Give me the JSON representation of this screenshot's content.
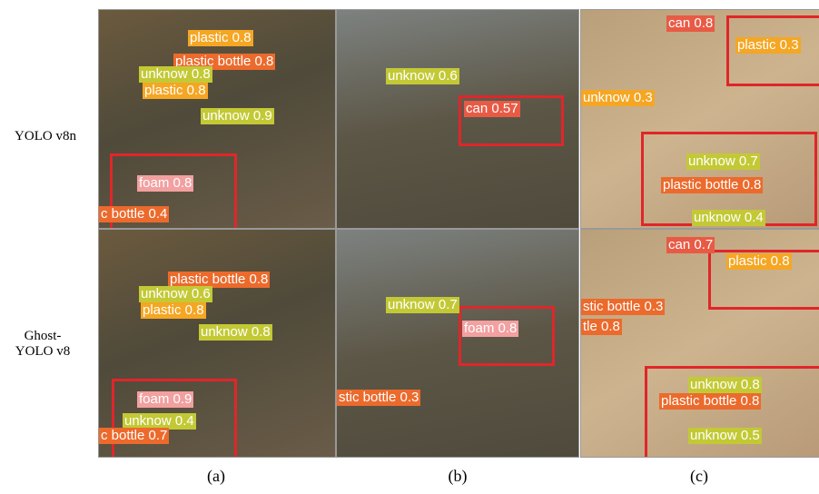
{
  "rows": [
    {
      "label": "YOLO v8n",
      "panels": [
        {
          "detections": [
            "plastic 0.8",
            "plastic bottle 0.8",
            "unknow 0.8",
            "plastic 0.8",
            "unknow 0.9",
            "foam 0.8",
            "c bottle 0.4"
          ]
        },
        {
          "detections": [
            "unknow 0.6",
            "can 0.57"
          ]
        },
        {
          "detections": [
            "plastic 0.3",
            "unknow 0.3",
            "unknow 0.7",
            "plastic bottle 0.8",
            "unknow 0.4",
            "can 0.8"
          ]
        }
      ]
    },
    {
      "label": "Ghost-YOLO v8",
      "panels": [
        {
          "detections": [
            "plastic bottle 0.8",
            "unknow 0.6",
            "plastic 0.8",
            "unknow 0.8",
            "foam 0.9",
            "unknow 0.4",
            "c bottle 0.7"
          ]
        },
        {
          "detections": [
            "unknow 0.7",
            "foam 0.8",
            "stic bottle 0.3"
          ]
        },
        {
          "detections": [
            "can 0.7",
            "plastic 0.8",
            "stic bottle 0.3",
            "tle 0.8",
            "unknow 0.8",
            "plastic bottle 0.8",
            "unknow 0.5"
          ]
        }
      ]
    }
  ],
  "captions": [
    "(a)",
    "(b)",
    "(c)"
  ]
}
